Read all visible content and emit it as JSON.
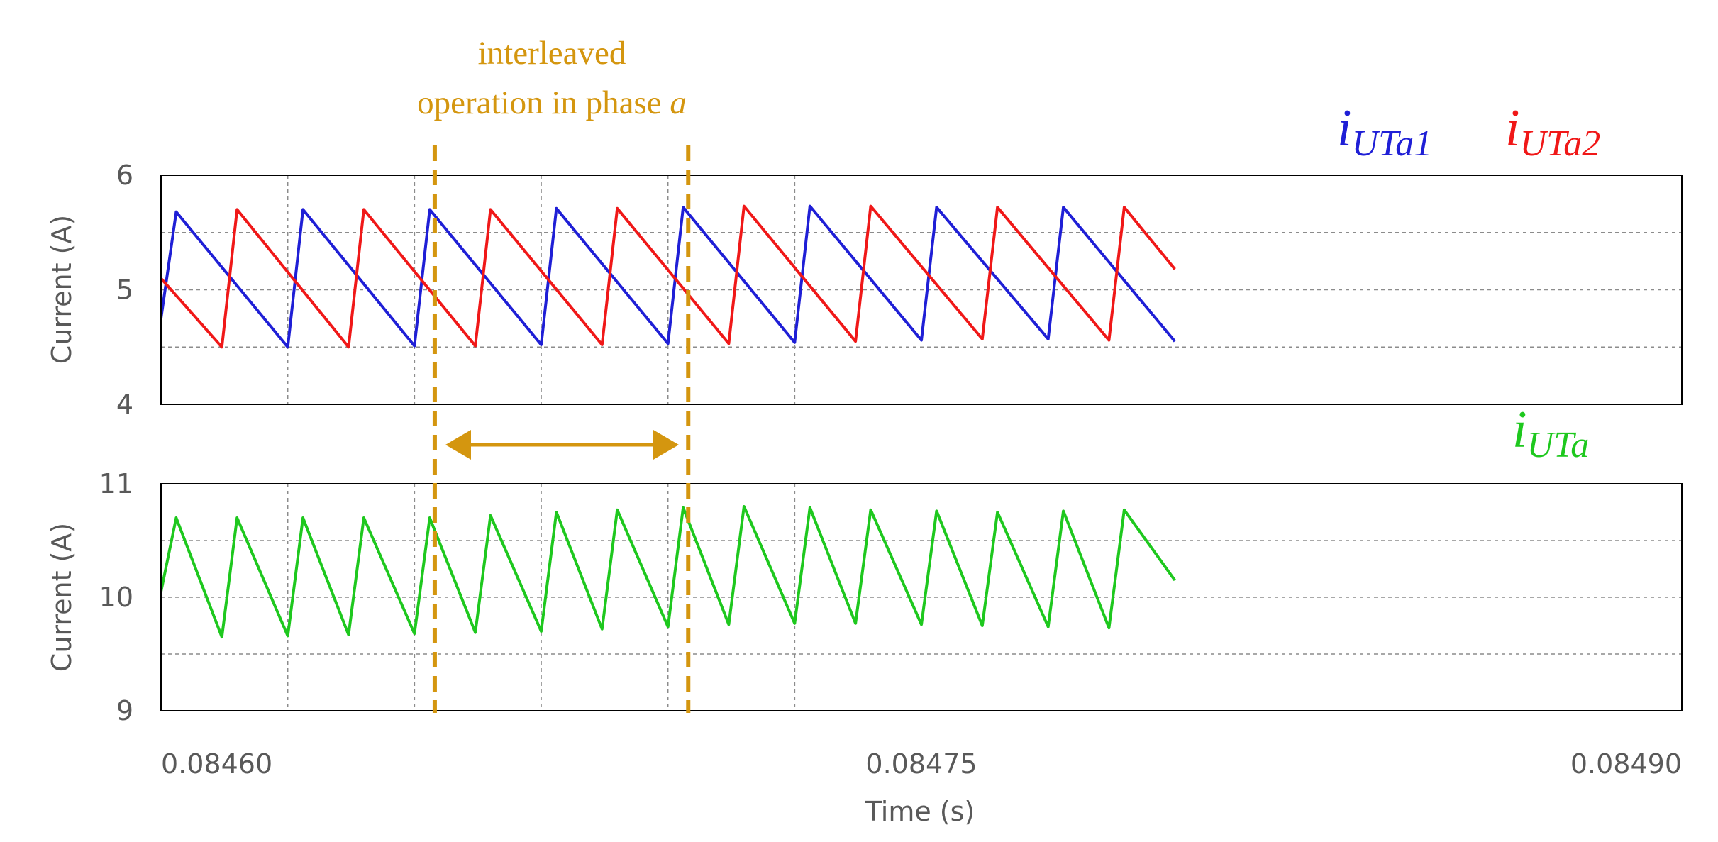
{
  "chart_data": [
    {
      "type": "line",
      "ylabel": "Current (A)",
      "ylim": [
        4,
        6
      ],
      "yticks": [
        "6",
        "5",
        "4"
      ],
      "xlim": [
        0.0846,
        0.0849
      ],
      "grid": true,
      "series": [
        {
          "name": "iUTa1",
          "label_main": "i",
          "label_sub": "UTa1",
          "color": "#1f1fd6",
          "points": [
            [
              0.0846,
              4.75
            ],
            [
              0.084603,
              5.68
            ],
            [
              0.084625,
              4.5
            ],
            [
              0.084628,
              5.7
            ],
            [
              0.08465,
              4.51
            ],
            [
              0.084653,
              5.7
            ],
            [
              0.084675,
              4.52
            ],
            [
              0.084678,
              5.71
            ],
            [
              0.0847,
              4.53
            ],
            [
              0.084703,
              5.72
            ],
            [
              0.084725,
              4.54
            ],
            [
              0.084728,
              5.73
            ],
            [
              0.08475,
              4.56
            ],
            [
              0.084753,
              5.72
            ],
            [
              0.084775,
              4.57
            ],
            [
              0.084778,
              5.72
            ],
            [
              0.0848,
              4.55
            ]
          ]
        },
        {
          "name": "iUTa2",
          "label_main": "i",
          "label_sub": "UTa2",
          "color": "#f01818",
          "points": [
            [
              0.0846,
              5.1
            ],
            [
              0.084612,
              4.5
            ],
            [
              0.084615,
              5.7
            ],
            [
              0.084637,
              4.5
            ],
            [
              0.08464,
              5.7
            ],
            [
              0.084662,
              4.51
            ],
            [
              0.084665,
              5.7
            ],
            [
              0.084687,
              4.52
            ],
            [
              0.08469,
              5.71
            ],
            [
              0.084712,
              4.53
            ],
            [
              0.084715,
              5.73
            ],
            [
              0.084737,
              4.55
            ],
            [
              0.08474,
              5.73
            ],
            [
              0.084762,
              4.57
            ],
            [
              0.084765,
              5.72
            ],
            [
              0.084787,
              4.56
            ],
            [
              0.08479,
              5.72
            ],
            [
              0.0848,
              5.18
            ]
          ]
        }
      ]
    },
    {
      "type": "line",
      "ylabel": "Current (A)",
      "xlabel": "Time (s)",
      "ylim": [
        9,
        11
      ],
      "yticks": [
        "11",
        "10",
        "9"
      ],
      "xlim": [
        0.0846,
        0.0849
      ],
      "xticks": [
        "0.08460",
        "0.08475",
        "0.08490"
      ],
      "grid": true,
      "series": [
        {
          "name": "iUTa",
          "label_main": "i",
          "label_sub": "UTa",
          "color": "#1ec81e",
          "points": [
            [
              0.0846,
              10.05
            ],
            [
              0.084603,
              10.7
            ],
            [
              0.084612,
              9.65
            ],
            [
              0.084615,
              10.7
            ],
            [
              0.084625,
              9.66
            ],
            [
              0.084628,
              10.7
            ],
            [
              0.084637,
              9.67
            ],
            [
              0.08464,
              10.7
            ],
            [
              0.08465,
              9.68
            ],
            [
              0.084653,
              10.7
            ],
            [
              0.084662,
              9.69
            ],
            [
              0.084665,
              10.72
            ],
            [
              0.084675,
              9.7
            ],
            [
              0.084678,
              10.75
            ],
            [
              0.084687,
              9.72
            ],
            [
              0.08469,
              10.77
            ],
            [
              0.0847,
              9.74
            ],
            [
              0.084703,
              10.79
            ],
            [
              0.084712,
              9.76
            ],
            [
              0.084715,
              10.8
            ],
            [
              0.084725,
              9.77
            ],
            [
              0.084728,
              10.79
            ],
            [
              0.084737,
              9.77
            ],
            [
              0.08474,
              10.77
            ],
            [
              0.08475,
              9.76
            ],
            [
              0.084753,
              10.76
            ],
            [
              0.084762,
              9.75
            ],
            [
              0.084765,
              10.75
            ],
            [
              0.084775,
              9.74
            ],
            [
              0.084778,
              10.76
            ],
            [
              0.084787,
              9.73
            ],
            [
              0.08479,
              10.77
            ],
            [
              0.0848,
              10.15
            ]
          ]
        }
      ]
    }
  ],
  "annotation": {
    "line1": "interleaved",
    "line2": "operation in phase ",
    "phase_var": "a",
    "color": "#d4960f",
    "marker_times": [
      0.084654,
      0.084704
    ]
  }
}
